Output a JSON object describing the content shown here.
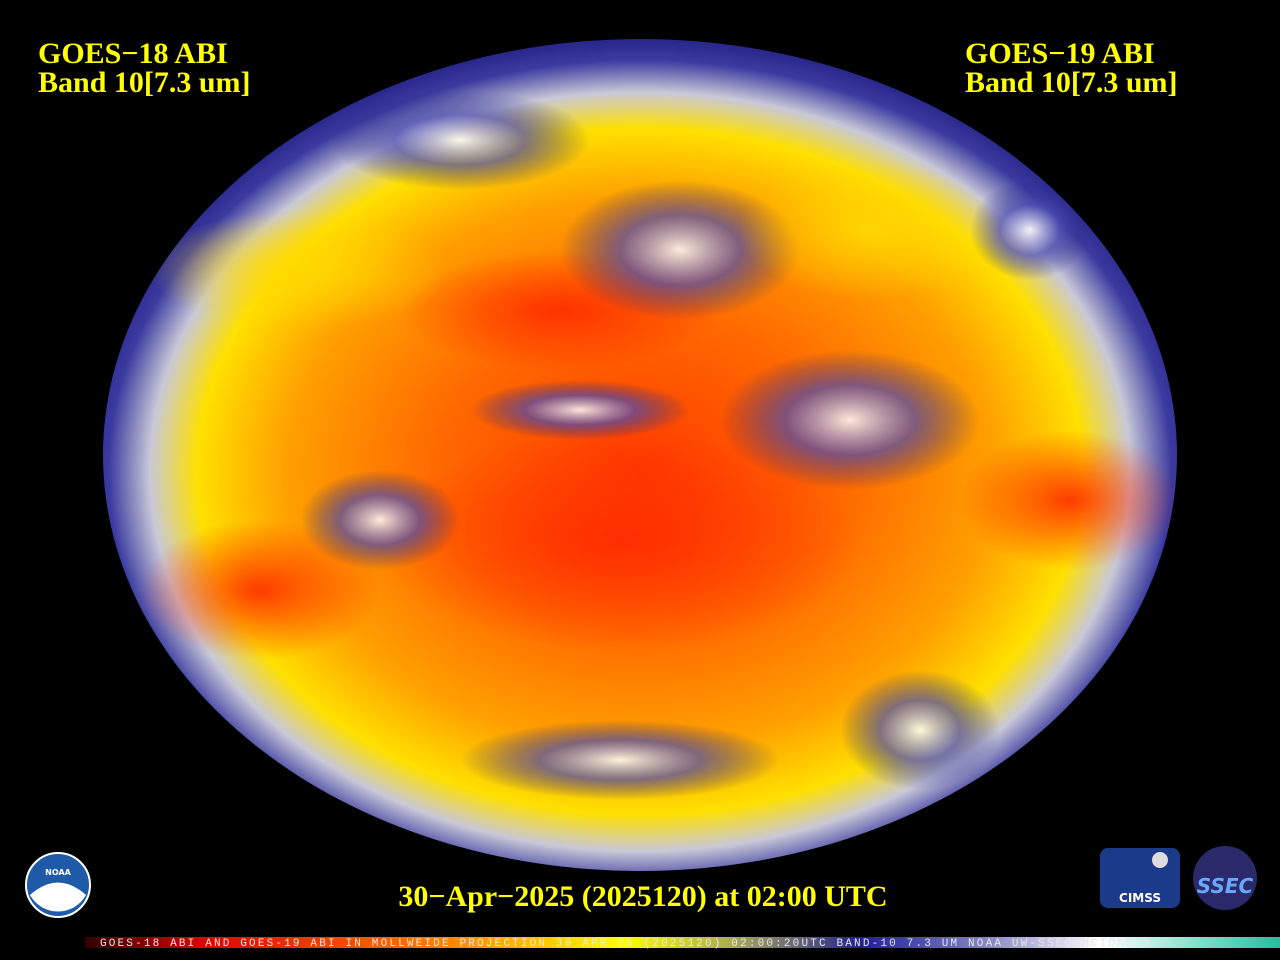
{
  "header": {
    "left": {
      "title": "GOES−18 ABI",
      "band": "Band 10[7.3 um]"
    },
    "right": {
      "title": "GOES−19 ABI",
      "band": "Band 10[7.3 um]"
    }
  },
  "timestamp": "30−Apr−2025 (2025120) at 02:00 UTC",
  "colorbar": {
    "caption": "GOES-18 ABI AND GOES-19 ABI IN MOLLWEIDE PROJECTION 30 APR 25 (2025120) 02:00:20UTC BAND-10 7.3 UM NOAA UW-SSEC MCIDAS-X"
  },
  "logos": {
    "noaa": "NOAA",
    "cimss": "CIMSS",
    "ssec": "SSEC"
  }
}
